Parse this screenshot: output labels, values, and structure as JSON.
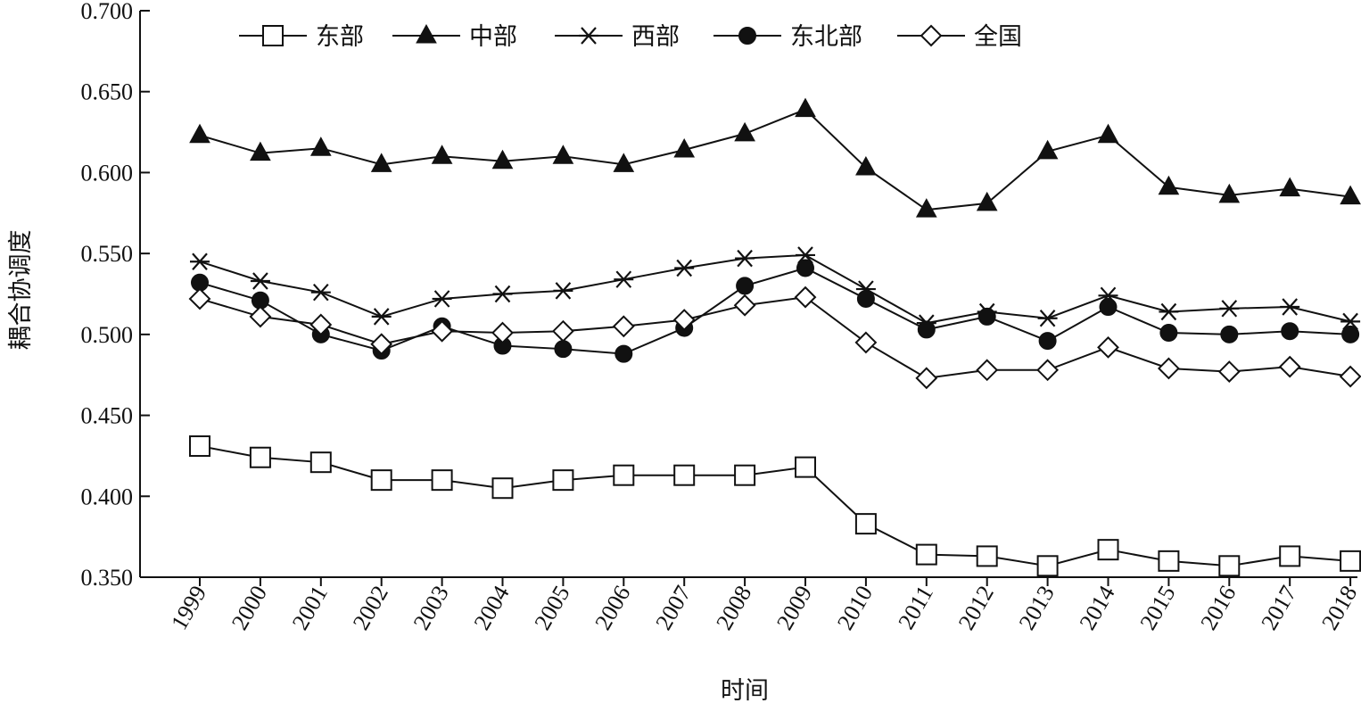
{
  "chart_data": {
    "type": "line",
    "title": "",
    "xlabel": "时间",
    "ylabel": "耦合协调度",
    "ylim": [
      0.35,
      0.7
    ],
    "yticks": [
      "0.350",
      "0.400",
      "0.450",
      "0.500",
      "0.550",
      "0.600",
      "0.650",
      "0.700"
    ],
    "x": [
      "1999",
      "2000",
      "2001",
      "2002",
      "2003",
      "2004",
      "2005",
      "2006",
      "2007",
      "2008",
      "2009",
      "2010",
      "2011",
      "2012",
      "2013",
      "2014",
      "2015",
      "2016",
      "2017",
      "2018"
    ],
    "legend_position": "top",
    "series": [
      {
        "name": "东部",
        "marker": "square-open",
        "values": [
          0.431,
          0.424,
          0.421,
          0.41,
          0.41,
          0.405,
          0.41,
          0.413,
          0.413,
          0.413,
          0.418,
          0.383,
          0.364,
          0.363,
          0.357,
          0.367,
          0.36,
          0.357,
          0.363,
          0.36
        ]
      },
      {
        "name": "中部",
        "marker": "triangle-filled",
        "values": [
          0.623,
          0.612,
          0.615,
          0.605,
          0.61,
          0.607,
          0.61,
          0.605,
          0.614,
          0.624,
          0.639,
          0.603,
          0.577,
          0.581,
          0.613,
          0.623,
          0.591,
          0.586,
          0.59,
          0.585
        ]
      },
      {
        "name": "西部",
        "marker": "asterisk",
        "values": [
          0.545,
          0.533,
          0.526,
          0.511,
          0.522,
          0.525,
          0.527,
          0.534,
          0.541,
          0.547,
          0.549,
          0.528,
          0.507,
          0.514,
          0.51,
          0.524,
          0.514,
          0.516,
          0.517,
          0.508
        ]
      },
      {
        "name": "东北部",
        "marker": "circle-filled",
        "values": [
          0.532,
          0.521,
          0.5,
          0.49,
          0.505,
          0.493,
          0.491,
          0.488,
          0.504,
          0.53,
          0.541,
          0.522,
          0.503,
          0.511,
          0.496,
          0.517,
          0.501,
          0.5,
          0.502,
          0.5
        ]
      },
      {
        "name": "全国",
        "marker": "diamond-open",
        "values": [
          0.522,
          0.511,
          0.506,
          0.494,
          0.502,
          0.501,
          0.502,
          0.505,
          0.509,
          0.518,
          0.523,
          0.495,
          0.473,
          0.478,
          0.478,
          0.492,
          0.479,
          0.477,
          0.48,
          0.474
        ]
      }
    ]
  }
}
